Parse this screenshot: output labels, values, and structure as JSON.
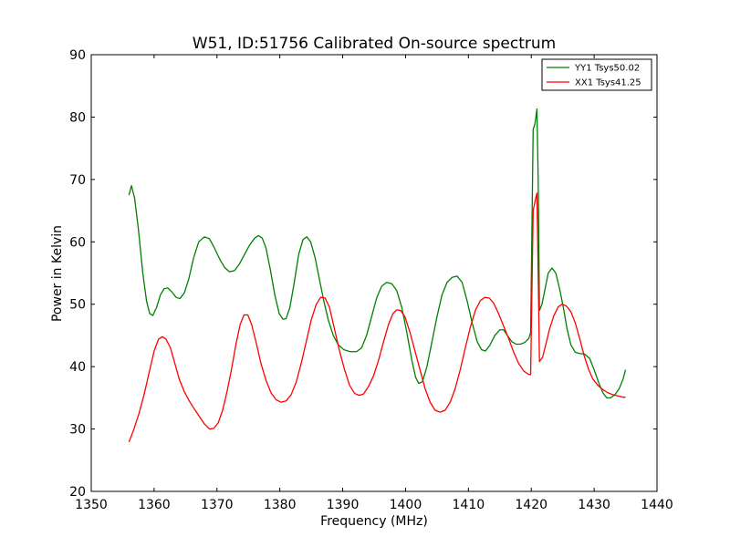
{
  "chart_data": {
    "type": "line",
    "title": "W51, ID:51756 Calibrated On-source spectrum",
    "xlabel": "Frequency (MHz)",
    "ylabel": "Power in Kelvin",
    "xlim": [
      1350,
      1440
    ],
    "ylim": [
      20,
      90
    ],
    "xticks": [
      1350,
      1360,
      1370,
      1380,
      1390,
      1400,
      1410,
      1420,
      1430,
      1440
    ],
    "yticks": [
      20,
      30,
      40,
      50,
      60,
      70,
      80,
      90
    ],
    "grid": false,
    "legend": "top-right",
    "series": [
      {
        "name": "YY1 Tsys50.02",
        "color": "#008000",
        "points": [
          [
            1356.0,
            67.5
          ],
          [
            1356.4,
            69.0
          ],
          [
            1356.9,
            67.0
          ],
          [
            1357.5,
            62.0
          ],
          [
            1358.2,
            55.0
          ],
          [
            1358.8,
            50.5
          ],
          [
            1359.3,
            48.5
          ],
          [
            1359.8,
            48.2
          ],
          [
            1360.4,
            49.5
          ],
          [
            1361.0,
            51.5
          ],
          [
            1361.6,
            52.5
          ],
          [
            1362.2,
            52.6
          ],
          [
            1362.8,
            52.0
          ],
          [
            1363.5,
            51.1
          ],
          [
            1364.1,
            50.9
          ],
          [
            1364.8,
            51.8
          ],
          [
            1365.5,
            54.0
          ],
          [
            1366.3,
            57.5
          ],
          [
            1367.1,
            60.0
          ],
          [
            1368.0,
            60.8
          ],
          [
            1368.8,
            60.5
          ],
          [
            1369.6,
            59.0
          ],
          [
            1370.4,
            57.3
          ],
          [
            1371.2,
            55.9
          ],
          [
            1372.0,
            55.2
          ],
          [
            1372.8,
            55.4
          ],
          [
            1373.6,
            56.5
          ],
          [
            1374.4,
            58.0
          ],
          [
            1375.2,
            59.5
          ],
          [
            1376.0,
            60.6
          ],
          [
            1376.6,
            61.0
          ],
          [
            1377.2,
            60.6
          ],
          [
            1377.8,
            59.0
          ],
          [
            1378.5,
            55.5
          ],
          [
            1379.2,
            51.5
          ],
          [
            1379.9,
            48.5
          ],
          [
            1380.5,
            47.6
          ],
          [
            1381.0,
            47.7
          ],
          [
            1381.6,
            49.5
          ],
          [
            1382.3,
            53.5
          ],
          [
            1383.0,
            58.0
          ],
          [
            1383.7,
            60.4
          ],
          [
            1384.3,
            60.8
          ],
          [
            1384.9,
            60.0
          ],
          [
            1385.6,
            57.5
          ],
          [
            1386.3,
            54.0
          ],
          [
            1387.0,
            50.5
          ],
          [
            1387.7,
            47.5
          ],
          [
            1388.5,
            45.0
          ],
          [
            1389.3,
            43.5
          ],
          [
            1390.2,
            42.7
          ],
          [
            1391.2,
            42.4
          ],
          [
            1392.2,
            42.4
          ],
          [
            1393.0,
            43.0
          ],
          [
            1393.8,
            45.0
          ],
          [
            1394.6,
            48.0
          ],
          [
            1395.4,
            51.0
          ],
          [
            1396.2,
            52.9
          ],
          [
            1397.0,
            53.5
          ],
          [
            1397.8,
            53.3
          ],
          [
            1398.6,
            52.2
          ],
          [
            1399.4,
            49.5
          ],
          [
            1400.2,
            45.5
          ],
          [
            1401.0,
            41.0
          ],
          [
            1401.6,
            38.3
          ],
          [
            1402.1,
            37.3
          ],
          [
            1402.7,
            37.6
          ],
          [
            1403.4,
            40.0
          ],
          [
            1404.2,
            44.0
          ],
          [
            1405.0,
            48.0
          ],
          [
            1405.8,
            51.5
          ],
          [
            1406.6,
            53.5
          ],
          [
            1407.4,
            54.3
          ],
          [
            1408.2,
            54.5
          ],
          [
            1409.0,
            53.5
          ],
          [
            1409.8,
            50.5
          ],
          [
            1410.6,
            47.0
          ],
          [
            1411.4,
            44.0
          ],
          [
            1412.1,
            42.7
          ],
          [
            1412.7,
            42.5
          ],
          [
            1413.4,
            43.4
          ],
          [
            1414.2,
            45.0
          ],
          [
            1415.0,
            45.9
          ],
          [
            1415.6,
            45.9
          ],
          [
            1416.2,
            45.0
          ],
          [
            1416.9,
            44.0
          ],
          [
            1417.6,
            43.6
          ],
          [
            1418.3,
            43.6
          ],
          [
            1419.0,
            43.9
          ],
          [
            1419.6,
            44.5
          ],
          [
            1419.9,
            45.5
          ],
          [
            1420.3,
            78.0
          ],
          [
            1420.6,
            79.0
          ],
          [
            1420.9,
            81.3
          ],
          [
            1421.1,
            70.0
          ],
          [
            1421.3,
            49.0
          ],
          [
            1421.7,
            50.0
          ],
          [
            1422.2,
            52.5
          ],
          [
            1422.7,
            55.0
          ],
          [
            1423.3,
            55.8
          ],
          [
            1423.9,
            55.0
          ],
          [
            1424.5,
            52.5
          ],
          [
            1425.1,
            49.5
          ],
          [
            1425.7,
            46.0
          ],
          [
            1426.3,
            43.5
          ],
          [
            1427.0,
            42.3
          ],
          [
            1427.7,
            42.1
          ],
          [
            1428.5,
            42.0
          ],
          [
            1429.3,
            41.3
          ],
          [
            1430.0,
            39.5
          ],
          [
            1430.7,
            37.5
          ],
          [
            1431.4,
            35.8
          ],
          [
            1432.0,
            35.0
          ],
          [
            1432.6,
            35.0
          ],
          [
            1433.3,
            35.5
          ],
          [
            1434.0,
            36.5
          ],
          [
            1434.6,
            38.0
          ],
          [
            1435.0,
            39.5
          ]
        ]
      },
      {
        "name": "XX1 Tsys41.25",
        "color": "#ff0000",
        "points": [
          [
            1356.0,
            27.9
          ],
          [
            1356.8,
            30.0
          ],
          [
            1357.6,
            32.5
          ],
          [
            1358.4,
            35.5
          ],
          [
            1359.2,
            39.0
          ],
          [
            1360.0,
            42.5
          ],
          [
            1360.7,
            44.4
          ],
          [
            1361.3,
            44.8
          ],
          [
            1361.9,
            44.4
          ],
          [
            1362.6,
            43.0
          ],
          [
            1363.3,
            40.5
          ],
          [
            1364.0,
            38.0
          ],
          [
            1364.8,
            36.0
          ],
          [
            1365.6,
            34.5
          ],
          [
            1366.4,
            33.2
          ],
          [
            1367.2,
            32.0
          ],
          [
            1368.0,
            30.8
          ],
          [
            1368.8,
            30.0
          ],
          [
            1369.5,
            30.1
          ],
          [
            1370.2,
            31.0
          ],
          [
            1370.9,
            33.0
          ],
          [
            1371.6,
            36.0
          ],
          [
            1372.3,
            39.5
          ],
          [
            1373.0,
            43.5
          ],
          [
            1373.7,
            46.8
          ],
          [
            1374.3,
            48.3
          ],
          [
            1374.9,
            48.3
          ],
          [
            1375.5,
            46.8
          ],
          [
            1376.2,
            44.0
          ],
          [
            1377.0,
            40.5
          ],
          [
            1377.8,
            37.8
          ],
          [
            1378.6,
            35.8
          ],
          [
            1379.4,
            34.7
          ],
          [
            1380.2,
            34.3
          ],
          [
            1381.0,
            34.5
          ],
          [
            1381.8,
            35.5
          ],
          [
            1382.6,
            37.5
          ],
          [
            1383.4,
            40.5
          ],
          [
            1384.2,
            44.0
          ],
          [
            1385.0,
            47.5
          ],
          [
            1385.8,
            50.0
          ],
          [
            1386.5,
            51.1
          ],
          [
            1387.2,
            51.0
          ],
          [
            1387.9,
            49.5
          ],
          [
            1388.7,
            46.0
          ],
          [
            1389.5,
            42.5
          ],
          [
            1390.3,
            39.5
          ],
          [
            1391.1,
            37.0
          ],
          [
            1391.9,
            35.7
          ],
          [
            1392.6,
            35.4
          ],
          [
            1393.3,
            35.6
          ],
          [
            1394.1,
            36.8
          ],
          [
            1394.9,
            38.5
          ],
          [
            1395.7,
            41.0
          ],
          [
            1396.5,
            44.0
          ],
          [
            1397.3,
            46.8
          ],
          [
            1398.0,
            48.5
          ],
          [
            1398.6,
            49.1
          ],
          [
            1399.2,
            49.0
          ],
          [
            1399.9,
            48.0
          ],
          [
            1400.7,
            45.5
          ],
          [
            1401.5,
            42.5
          ],
          [
            1402.3,
            39.5
          ],
          [
            1403.1,
            36.5
          ],
          [
            1403.9,
            34.3
          ],
          [
            1404.7,
            33.0
          ],
          [
            1405.5,
            32.7
          ],
          [
            1406.3,
            33.0
          ],
          [
            1407.1,
            34.3
          ],
          [
            1407.9,
            36.5
          ],
          [
            1408.7,
            39.5
          ],
          [
            1409.5,
            43.0
          ],
          [
            1410.3,
            46.3
          ],
          [
            1411.1,
            49.0
          ],
          [
            1411.9,
            50.6
          ],
          [
            1412.6,
            51.1
          ],
          [
            1413.3,
            51.0
          ],
          [
            1414.0,
            50.2
          ],
          [
            1414.8,
            48.5
          ],
          [
            1415.6,
            46.5
          ],
          [
            1416.4,
            44.5
          ],
          [
            1417.2,
            42.3
          ],
          [
            1418.0,
            40.5
          ],
          [
            1418.8,
            39.3
          ],
          [
            1419.5,
            38.8
          ],
          [
            1419.9,
            38.7
          ],
          [
            1420.3,
            65.0
          ],
          [
            1420.6,
            66.5
          ],
          [
            1420.9,
            67.8
          ],
          [
            1421.1,
            55.0
          ],
          [
            1421.3,
            40.8
          ],
          [
            1421.8,
            41.5
          ],
          [
            1422.3,
            43.5
          ],
          [
            1422.9,
            46.0
          ],
          [
            1423.6,
            48.2
          ],
          [
            1424.3,
            49.6
          ],
          [
            1424.9,
            50.0
          ],
          [
            1425.6,
            49.7
          ],
          [
            1426.3,
            48.8
          ],
          [
            1427.0,
            47.0
          ],
          [
            1427.7,
            44.5
          ],
          [
            1428.4,
            41.8
          ],
          [
            1429.1,
            39.6
          ],
          [
            1429.8,
            38.0
          ],
          [
            1430.6,
            37.0
          ],
          [
            1431.4,
            36.3
          ],
          [
            1432.2,
            35.8
          ],
          [
            1433.0,
            35.5
          ],
          [
            1433.8,
            35.3
          ],
          [
            1434.6,
            35.1
          ],
          [
            1435.0,
            35.1
          ]
        ]
      }
    ]
  }
}
